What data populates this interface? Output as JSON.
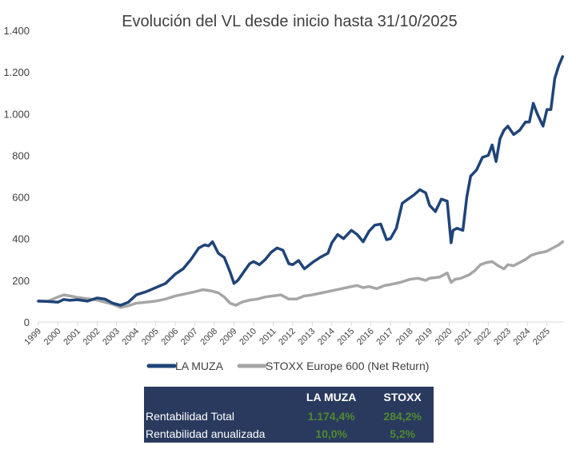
{
  "chart_data": {
    "type": "line",
    "title": "Evolución del VL desde inicio hasta 31/10/2025",
    "xlabel": "",
    "ylabel": "",
    "ylim": [
      0,
      1400
    ],
    "xlim": [
      1999,
      2025.9
    ],
    "yticks": [
      0,
      200,
      400,
      600,
      800,
      1000,
      1200,
      1400
    ],
    "ytick_labels": [
      "0",
      "200",
      "400",
      "600",
      "800",
      "1.000",
      "1.200",
      "1.400"
    ],
    "xtick_labels": [
      "1999",
      "2000",
      "2001",
      "2002",
      "2003",
      "2004",
      "2005",
      "2006",
      "2007",
      "2008",
      "2009",
      "2010",
      "2011",
      "2012",
      "2013",
      "2014",
      "2015",
      "2016",
      "2017",
      "2018",
      "2019",
      "2020",
      "2021",
      "2022",
      "2023",
      "2024",
      "2025"
    ],
    "grid": false,
    "legend_placement": "bottom",
    "colors": {
      "la_muza": "#1f4479",
      "stoxx": "#a6a6a6"
    },
    "series": [
      {
        "name": "LA MUZA",
        "x": [
          1999.0,
          1999.5,
          2000.0,
          2000.3,
          2000.6,
          2001.0,
          2001.5,
          2002.0,
          2002.4,
          2002.8,
          2003.2,
          2003.6,
          2004.0,
          2004.5,
          2005.0,
          2005.5,
          2006.0,
          2006.4,
          2006.8,
          2007.2,
          2007.5,
          2007.7,
          2007.9,
          2008.2,
          2008.5,
          2008.8,
          2009.0,
          2009.2,
          2009.5,
          2009.8,
          2010.0,
          2010.3,
          2010.6,
          2010.9,
          2011.2,
          2011.5,
          2011.8,
          2012.0,
          2012.3,
          2012.6,
          2013.0,
          2013.4,
          2013.8,
          2014.0,
          2014.3,
          2014.6,
          2015.0,
          2015.3,
          2015.6,
          2015.9,
          2016.2,
          2016.5,
          2016.8,
          2017.0,
          2017.3,
          2017.6,
          2017.9,
          2018.2,
          2018.5,
          2018.8,
          2019.0,
          2019.3,
          2019.6,
          2019.9,
          2020.1,
          2020.2,
          2020.4,
          2020.7,
          2020.9,
          2021.1,
          2021.4,
          2021.7,
          2022.0,
          2022.2,
          2022.4,
          2022.6,
          2022.8,
          2023.0,
          2023.3,
          2023.6,
          2023.9,
          2024.1,
          2024.3,
          2024.5,
          2024.8,
          2025.0,
          2025.2,
          2025.4,
          2025.6,
          2025.8
        ],
        "values": [
          100,
          98,
          95,
          108,
          104,
          107,
          100,
          115,
          110,
          90,
          80,
          95,
          130,
          145,
          165,
          185,
          230,
          255,
          300,
          355,
          370,
          365,
          385,
          330,
          310,
          240,
          185,
          200,
          240,
          280,
          290,
          275,
          300,
          335,
          355,
          345,
          280,
          275,
          295,
          255,
          285,
          310,
          330,
          380,
          420,
          400,
          440,
          420,
          385,
          435,
          465,
          470,
          395,
          400,
          450,
          570,
          590,
          610,
          635,
          620,
          560,
          530,
          590,
          580,
          380,
          440,
          450,
          440,
          600,
          700,
          730,
          790,
          800,
          850,
          770,
          880,
          920,
          940,
          900,
          920,
          960,
          960,
          1050,
          1000,
          940,
          1020,
          1020,
          1170,
          1230,
          1274
        ]
      },
      {
        "name": "STOXX Europe 600 (Net Return)",
        "x": [
          1999.0,
          1999.5,
          2000.0,
          2000.3,
          2000.6,
          2001.0,
          2001.5,
          2002.0,
          2002.4,
          2002.8,
          2003.2,
          2003.6,
          2004.0,
          2004.5,
          2005.0,
          2005.5,
          2006.0,
          2006.5,
          2007.0,
          2007.4,
          2007.8,
          2008.2,
          2008.5,
          2008.8,
          2009.1,
          2009.4,
          2009.8,
          2010.2,
          2010.6,
          2011.0,
          2011.4,
          2011.8,
          2012.2,
          2012.6,
          2013.0,
          2013.5,
          2014.0,
          2014.5,
          2015.0,
          2015.3,
          2015.6,
          2015.9,
          2016.3,
          2016.7,
          2017.0,
          2017.5,
          2018.0,
          2018.4,
          2018.8,
          2019.0,
          2019.5,
          2019.9,
          2020.1,
          2020.3,
          2020.6,
          2021.0,
          2021.3,
          2021.6,
          2021.9,
          2022.2,
          2022.5,
          2022.8,
          2023.0,
          2023.3,
          2023.6,
          2023.9,
          2024.2,
          2024.5,
          2024.8,
          2025.0,
          2025.3,
          2025.6,
          2025.8
        ],
        "values": [
          100,
          100,
          120,
          130,
          125,
          118,
          112,
          105,
          95,
          85,
          70,
          78,
          90,
          95,
          100,
          110,
          125,
          135,
          145,
          155,
          150,
          140,
          120,
          90,
          80,
          95,
          105,
          110,
          120,
          125,
          130,
          110,
          110,
          125,
          130,
          140,
          150,
          160,
          170,
          175,
          165,
          170,
          160,
          175,
          180,
          190,
          205,
          210,
          200,
          210,
          215,
          235,
          190,
          205,
          210,
          225,
          245,
          275,
          285,
          290,
          270,
          255,
          275,
          270,
          285,
          300,
          320,
          330,
          335,
          340,
          355,
          370,
          385
        ]
      }
    ]
  },
  "legend": {
    "items": [
      {
        "label": "LA MUZA"
      },
      {
        "label": "STOXX Europe 600 (Net Return)"
      }
    ]
  },
  "table": {
    "headers": [
      "",
      "LA MUZA",
      "STOXX"
    ],
    "rows": [
      {
        "label": "Rentabilidad Total",
        "la_muza": "1.174,4%",
        "stoxx": "284,2%"
      },
      {
        "label": "Rentabilidad anualizada",
        "la_muza": "10,0%",
        "stoxx": "5,2%"
      }
    ],
    "colors": {
      "background": "#2a3a5e",
      "header_text": "#ffffff",
      "value_text": "#4f8a2e"
    }
  }
}
